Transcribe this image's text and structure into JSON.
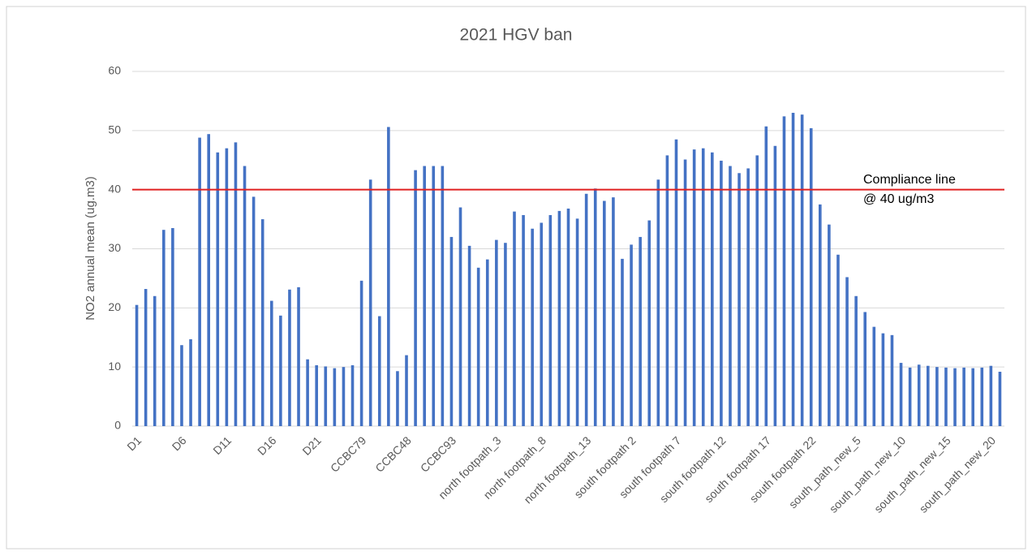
{
  "chart_data": {
    "type": "bar",
    "title": "2021 HGV ban",
    "y_label": "NO2 annual mean (ug.m3)",
    "categories": [
      "D1",
      null,
      null,
      null,
      null,
      "D6",
      null,
      null,
      null,
      null,
      "D11",
      null,
      null,
      null,
      null,
      "D16",
      null,
      null,
      null,
      null,
      "D21",
      null,
      null,
      null,
      null,
      "CCBC79",
      null,
      null,
      null,
      null,
      "CCBC48",
      null,
      null,
      null,
      null,
      "CCBC93",
      null,
      null,
      null,
      null,
      "north footpath_3",
      null,
      null,
      null,
      null,
      "north footpath_8",
      null,
      null,
      null,
      null,
      "north footpath_13",
      null,
      null,
      null,
      null,
      "south footpath 2",
      null,
      null,
      null,
      null,
      "south footpath 7",
      null,
      null,
      null,
      null,
      "south footpath 12",
      null,
      null,
      null,
      null,
      "south footpath 17",
      null,
      null,
      null,
      null,
      "south footpath 22",
      null,
      null,
      null,
      null,
      "south_path_new_5",
      null,
      null,
      null,
      null,
      "south_path_new_10",
      null,
      null,
      null,
      null,
      "south_path_new_15",
      null,
      null,
      null,
      null,
      "south_path_new_20",
      null
    ],
    "values": [
      20.5,
      23.2,
      22,
      33.2,
      33.5,
      13.7,
      14.7,
      48.8,
      49.4,
      46.3,
      47,
      48,
      44,
      38.8,
      35,
      21.2,
      18.7,
      23.1,
      23.5,
      11.3,
      10.3,
      10.1,
      9.8,
      10,
      10.3,
      24.6,
      41.7,
      18.6,
      50.6,
      9.3,
      12,
      43.3,
      44,
      44,
      44,
      32,
      37,
      30.5,
      26.8,
      28.2,
      31.5,
      31,
      36.3,
      35.7,
      33.4,
      34.4,
      35.7,
      36.4,
      36.8,
      35.1,
      39.3,
      40.2,
      38.1,
      38.7,
      28.3,
      30.7,
      32,
      34.8,
      41.7,
      45.8,
      48.5,
      45.1,
      46.8,
      47,
      46.3,
      44.9,
      44,
      42.8,
      43.6,
      45.8,
      50.7,
      47.4,
      52.4,
      53,
      52.7,
      50.4,
      37.5,
      34.1,
      29,
      25.2,
      22,
      19.3,
      16.8,
      15.7,
      15.4,
      10.7,
      9.9,
      10.4,
      10.2,
      10,
      9.9,
      9.8,
      9.9,
      9.8,
      9.9,
      10.2,
      9.2
    ],
    "color": "#4472c4",
    "ylim": [
      0,
      60
    ],
    "yticks": [
      0,
      10,
      20,
      30,
      40,
      50,
      60
    ],
    "grid": true,
    "reference_line": {
      "value": 40,
      "color": "#e02020",
      "label_lines": [
        "Compliance line",
        "@ 40 ug/m3"
      ]
    }
  }
}
